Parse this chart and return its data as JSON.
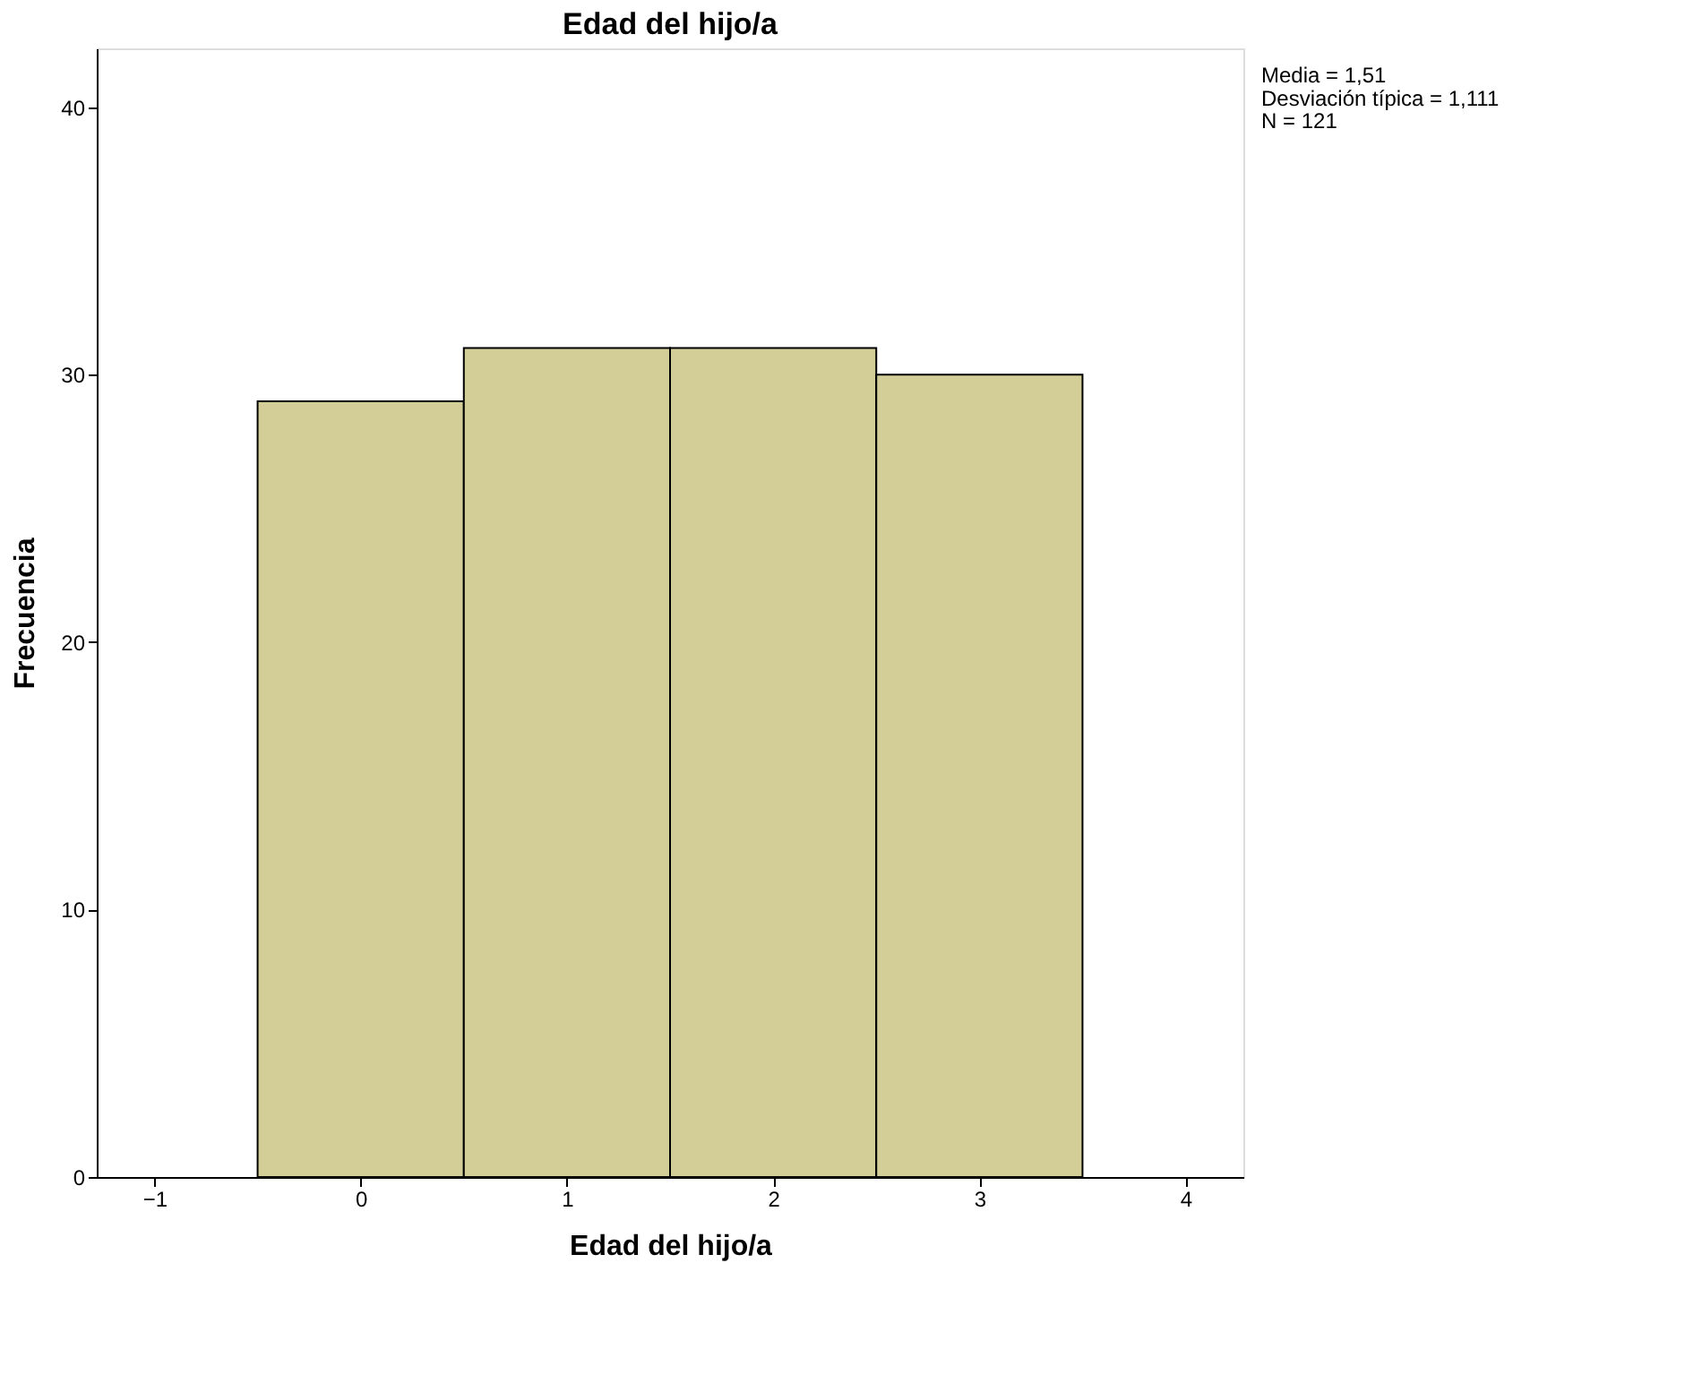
{
  "chart_data": {
    "type": "histogram",
    "title": "Edad del hijo/a",
    "xlabel": "Edad del hijo/a",
    "ylabel": "Frecuencia",
    "bins": [
      -0.5,
      0.5,
      1.5,
      2.5,
      3.5
    ],
    "values": [
      29,
      31,
      31,
      30
    ],
    "color": "#d3ce97",
    "xlim": [
      -1.28,
      4.28
    ],
    "xticks": [
      -1,
      0,
      1,
      2,
      3,
      4
    ],
    "ylim": [
      0,
      42.2
    ],
    "yticks": [
      0,
      10,
      20,
      30,
      40
    ],
    "grid": false,
    "annotations": [
      "Media = 1,51",
      "Desviación típica = 1,111",
      "N = 121"
    ]
  }
}
